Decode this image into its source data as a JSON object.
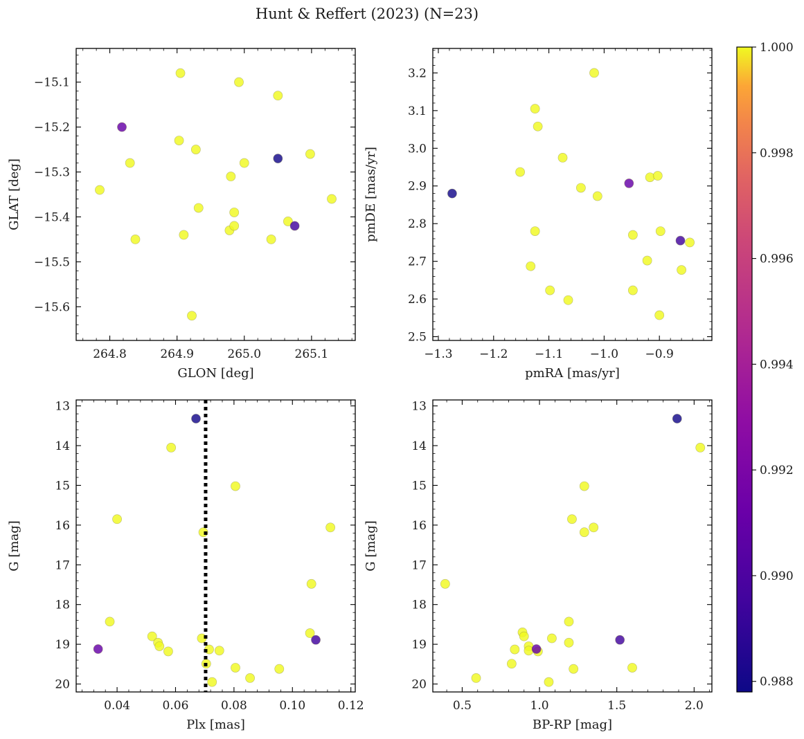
{
  "figure_title": "Hunt & Reffert (2023) (N=23)",
  "colors": {
    "cmap": "plasma",
    "pale_yellow": "#f0f921",
    "point_edge": "#8a8a4a",
    "frame": "#000000"
  },
  "colorbar": {
    "range": [
      0.9878,
      1.0
    ],
    "ticks": [
      0.988,
      0.99,
      0.992,
      0.994,
      0.996,
      0.998,
      1.0
    ],
    "tick_labels": [
      "0.988",
      "0.990",
      "0.992",
      "0.994",
      "0.996",
      "0.998",
      "1.000"
    ]
  },
  "chart_data": [
    {
      "type": "scatter",
      "id": "glon-glat",
      "xlabel": "GLON [deg]",
      "ylabel": "GLAT [deg]",
      "xlim": [
        264.75,
        265.165
      ],
      "ylim": [
        -15.675,
        -15.025
      ],
      "invert_y": false,
      "xticks": [
        264.8,
        264.9,
        265.0,
        265.1
      ],
      "xtick_labels": [
        "264.8",
        "264.9",
        "265.0",
        "265.1"
      ],
      "yticks": [
        -15.1,
        -15.2,
        -15.3,
        -15.4,
        -15.5,
        -15.6
      ],
      "ytick_labels": [
        "−15.1",
        "−15.2",
        "−15.3",
        "−15.4",
        "−15.5",
        "−15.6"
      ],
      "x": [
        264.905,
        264.992,
        265.05,
        264.818,
        264.903,
        264.928,
        265.05,
        264.83,
        265.0,
        265.098,
        264.785,
        264.98,
        265.13,
        264.932,
        264.985,
        265.065,
        265.075,
        264.91,
        264.978,
        264.985,
        264.838,
        265.04,
        264.922
      ],
      "y": [
        -15.08,
        -15.1,
        -15.13,
        -15.2,
        -15.23,
        -15.25,
        -15.27,
        -15.28,
        -15.28,
        -15.26,
        -15.34,
        -15.31,
        -15.36,
        -15.38,
        -15.39,
        -15.41,
        -15.42,
        -15.44,
        -15.43,
        -15.42,
        -15.45,
        -15.45,
        -15.62
      ],
      "color_values": [
        1.0,
        1.0,
        1.0,
        0.991,
        1.0,
        1.0,
        0.988,
        1.0,
        1.0,
        1.0,
        1.0,
        1.0,
        1.0,
        1.0,
        1.0,
        1.0,
        0.9895,
        1.0,
        1.0,
        1.0,
        1.0,
        1.0,
        1.0
      ]
    },
    {
      "type": "scatter",
      "id": "pm",
      "xlabel": "pmRA [mas/yr]",
      "ylabel": "pmDE [mas/yr]",
      "xlim": [
        -1.31,
        -0.805
      ],
      "ylim": [
        2.49,
        3.265
      ],
      "invert_y": false,
      "xticks": [
        -1.3,
        -1.2,
        -1.1,
        -1.0,
        -0.9,
        -0.8
      ],
      "xtick_labels": [
        "−1.3",
        "−1.2",
        "−1.1",
        "−1.0",
        "−0.9",
        "−0.8"
      ],
      "yticks": [
        2.5,
        2.6,
        2.7,
        2.8,
        2.9,
        3.0,
        3.1,
        3.2
      ],
      "ytick_labels": [
        "2.5",
        "2.6",
        "2.7",
        "2.8",
        "2.9",
        "3.0",
        "3.1",
        "3.2"
      ],
      "x": [
        -1.018,
        -1.125,
        -1.12,
        -1.075,
        -1.152,
        -1.275,
        -1.042,
        -1.012,
        -0.955,
        -0.917,
        -0.903,
        -1.125,
        -0.948,
        -0.898,
        -0.862,
        -0.845,
        -1.133,
        -0.922,
        -0.86,
        -1.098,
        -1.065,
        -0.948,
        -0.9
      ],
      "y": [
        3.2,
        3.105,
        3.058,
        2.975,
        2.937,
        2.88,
        2.895,
        2.873,
        2.907,
        2.923,
        2.927,
        2.78,
        2.77,
        2.78,
        2.755,
        2.75,
        2.687,
        2.702,
        2.677,
        2.623,
        2.597,
        2.623,
        2.557
      ],
      "color_values": [
        1.0,
        1.0,
        1.0,
        1.0,
        1.0,
        0.988,
        1.0,
        1.0,
        0.991,
        1.0,
        1.0,
        1.0,
        1.0,
        1.0,
        0.9895,
        1.0,
        1.0,
        1.0,
        1.0,
        1.0,
        1.0,
        1.0,
        1.0
      ]
    },
    {
      "type": "scatter",
      "id": "plx-g",
      "xlabel": "Plx [mas]",
      "ylabel": "G [mag]",
      "xlim": [
        0.026,
        0.1215
      ],
      "ylim": [
        12.85,
        20.2
      ],
      "invert_y": true,
      "xticks": [
        0.04,
        0.06,
        0.08,
        0.1,
        0.12
      ],
      "xtick_labels": [
        "0.04",
        "0.06",
        "0.08",
        "0.10",
        "0.12"
      ],
      "yticks": [
        13,
        14,
        15,
        16,
        17,
        18,
        19,
        20
      ],
      "ytick_labels": [
        "13",
        "14",
        "15",
        "16",
        "17",
        "18",
        "19",
        "20"
      ],
      "vline": 0.0703,
      "x": [
        0.067,
        0.0585,
        0.0805,
        0.04,
        0.0695,
        0.113,
        0.1065,
        0.0375,
        0.0335,
        0.052,
        0.054,
        0.0545,
        0.0575,
        0.069,
        0.0715,
        0.075,
        0.106,
        0.108,
        0.0705,
        0.0805,
        0.0955,
        0.0855,
        0.0725
      ],
      "y": [
        13.32,
        14.05,
        15.02,
        15.85,
        16.18,
        16.06,
        17.48,
        18.43,
        19.12,
        18.8,
        18.96,
        19.05,
        19.18,
        18.85,
        19.13,
        19.16,
        18.72,
        18.89,
        19.49,
        19.59,
        19.62,
        19.85,
        19.95
      ],
      "color_values": [
        0.988,
        1.0,
        1.0,
        1.0,
        1.0,
        1.0,
        1.0,
        1.0,
        0.991,
        1.0,
        1.0,
        1.0,
        1.0,
        1.0,
        1.0,
        1.0,
        1.0,
        0.9895,
        1.0,
        1.0,
        1.0,
        1.0,
        1.0
      ]
    },
    {
      "type": "scatter",
      "id": "cmd",
      "xlabel": "BP-RP [mag]",
      "ylabel": "G [mag]",
      "xlim": [
        0.31,
        2.115
      ],
      "ylim": [
        12.85,
        20.2
      ],
      "invert_y": true,
      "xticks": [
        0.5,
        1.0,
        1.5,
        2.0
      ],
      "xtick_labels": [
        "0.5",
        "1.0",
        "1.5",
        "2.0"
      ],
      "yticks": [
        13,
        14,
        15,
        16,
        17,
        18,
        19,
        20
      ],
      "ytick_labels": [
        "13",
        "14",
        "15",
        "16",
        "17",
        "18",
        "19",
        "20"
      ],
      "x": [
        1.89,
        2.04,
        1.29,
        1.21,
        1.29,
        1.35,
        0.39,
        1.19,
        0.98,
        0.89,
        0.9,
        0.93,
        0.99,
        1.08,
        0.84,
        0.93,
        1.19,
        1.52,
        0.82,
        1.22,
        1.6,
        0.59,
        1.06
      ],
      "y": [
        13.32,
        14.05,
        15.02,
        15.85,
        16.18,
        16.06,
        17.48,
        18.43,
        19.12,
        18.7,
        18.8,
        19.05,
        19.18,
        18.85,
        19.13,
        19.16,
        18.96,
        18.89,
        19.49,
        19.62,
        19.59,
        19.85,
        19.95
      ],
      "color_values": [
        0.988,
        1.0,
        1.0,
        1.0,
        1.0,
        1.0,
        1.0,
        1.0,
        0.991,
        1.0,
        1.0,
        1.0,
        1.0,
        1.0,
        1.0,
        1.0,
        1.0,
        0.9895,
        1.0,
        1.0,
        1.0,
        1.0,
        1.0
      ]
    }
  ]
}
